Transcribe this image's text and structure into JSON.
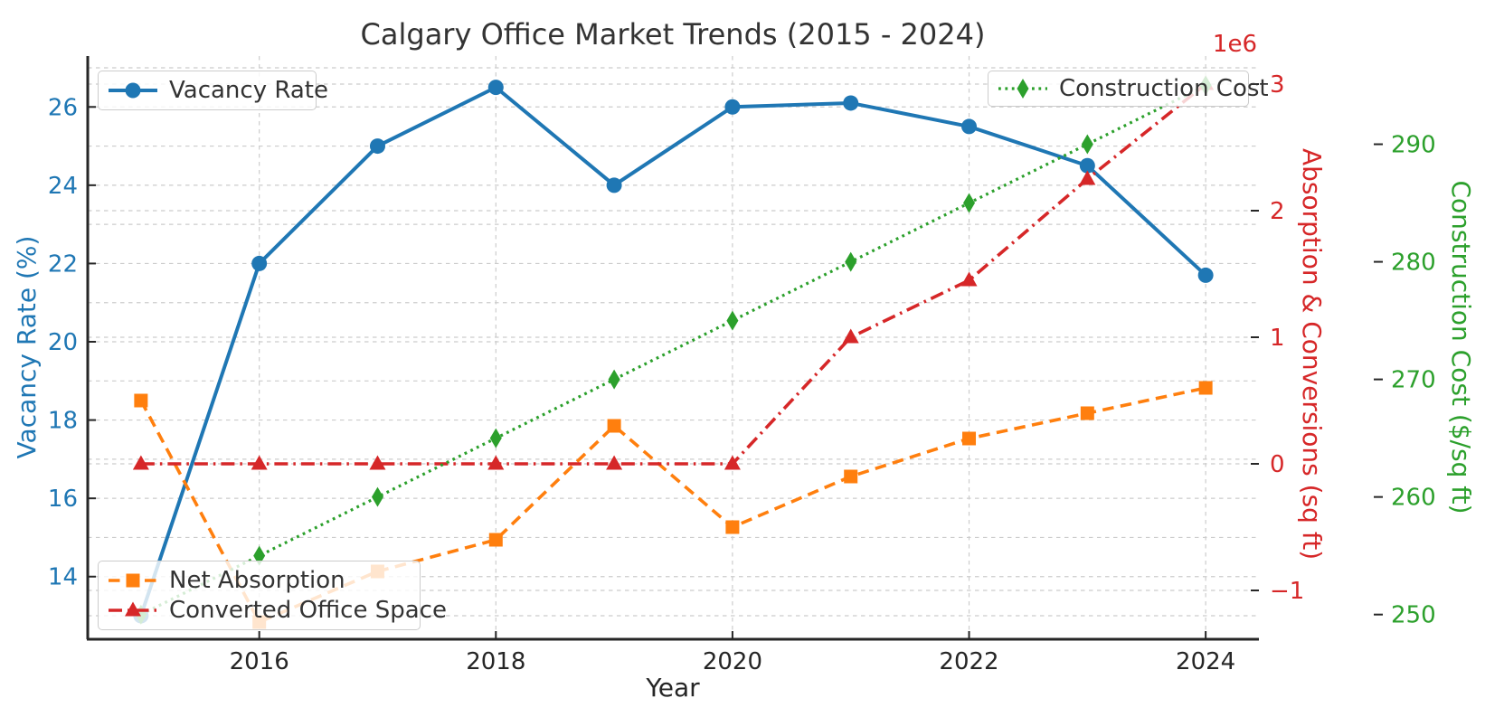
{
  "title": "Calgary Office Market Trends (2015 - 2024)",
  "chart_data": {
    "type": "line",
    "title": "Calgary Office Market Trends (2015 - 2024)",
    "xlabel": "Year",
    "x": [
      2015,
      2016,
      2017,
      2018,
      2019,
      2020,
      2021,
      2022,
      2023,
      2024
    ],
    "x_ticks": [
      2016,
      2018,
      2020,
      2022,
      2024
    ],
    "x_range": [
      2014.55,
      2024.45
    ],
    "series": [
      {
        "name": "Vacancy Rate",
        "axis": "left",
        "color": "#1f77b4",
        "style": "solid",
        "marker": "circle",
        "values": [
          13.0,
          22.0,
          25.0,
          26.5,
          24.0,
          26.0,
          26.1,
          25.5,
          24.5,
          21.7
        ]
      },
      {
        "name": "Net Absorption",
        "axis": "right1",
        "color": "#ff7f0e",
        "style": "dashed",
        "marker": "square",
        "values": [
          500000,
          -1250000,
          -850000,
          -600000,
          300000,
          -500000,
          -100000,
          200000,
          400000,
          600000
        ]
      },
      {
        "name": "Converted Office Space",
        "axis": "right1",
        "color": "#d62728",
        "style": "dashdot",
        "marker": "triangle",
        "values": [
          0,
          0,
          0,
          0,
          0,
          0,
          1000000,
          1450000,
          2250000,
          3000000
        ]
      },
      {
        "name": "Construction Cost",
        "axis": "right2",
        "color": "#2ca02c",
        "style": "dotted",
        "marker": "diamond",
        "values": [
          250,
          255,
          260,
          265,
          270,
          275,
          280,
          285,
          290,
          295
        ]
      }
    ],
    "axes": {
      "left": {
        "label": "Vacancy Rate (%)",
        "color": "#1f77b4",
        "ticks": [
          14,
          16,
          18,
          20,
          22,
          24,
          26
        ],
        "range": [
          12.4,
          27.3
        ],
        "grid_step": 1
      },
      "right1": {
        "label": "Absorption & Conversions (sq ft)",
        "color": "#d62728",
        "ticks": [
          -1000000,
          0,
          1000000,
          2000000,
          3000000
        ],
        "tick_labels": [
          "−1",
          "0",
          "1",
          "2",
          "3"
        ],
        "offset_text": "1e6",
        "range": [
          -1385714,
          3221429
        ],
        "grid_step": 1000000
      },
      "right2": {
        "label": "Construction Cost ($/sq ft)",
        "color": "#2ca02c",
        "ticks": [
          250,
          260,
          270,
          280,
          290
        ],
        "range": [
          247.9,
          297.5
        ]
      }
    },
    "grid": "on",
    "legend_positions": [
      "upper left",
      "upper right",
      "lower left"
    ]
  }
}
